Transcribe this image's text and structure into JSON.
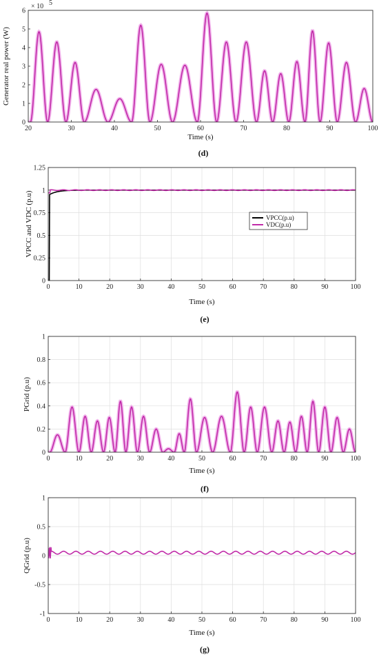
{
  "colors": {
    "black": "#000000",
    "magenta": "#c02aa8",
    "grid": "#dedede",
    "halo": "#f2b5ec"
  },
  "chart_data": [
    {
      "id": "d",
      "type": "line",
      "panel_label": "(d)",
      "xlabel": "Time (s)",
      "ylabel": "Generator real power (W)",
      "y_exponent_label": "× 10",
      "y_exponent": "5",
      "xlim": [
        20,
        100
      ],
      "ylim": [
        0,
        6
      ],
      "xticks": [
        20,
        30,
        40,
        50,
        60,
        70,
        80,
        90,
        100
      ],
      "yticks": [
        0,
        1,
        2,
        3,
        4,
        5,
        6
      ],
      "grid": false,
      "series": [
        {
          "color": "magenta",
          "peaks_x": [
            22.5,
            26.5,
            31,
            35,
            42,
            46,
            50.5,
            56.5,
            62,
            65.5,
            71,
            75,
            78.5,
            82.5,
            86,
            89.5,
            94,
            98
          ],
          "peaks_y": [
            4.85,
            4.3,
            3.2,
            1.75,
            1.25,
            5.2,
            3.1,
            3.05,
            5.85,
            4.3,
            4.3,
            2.75,
            2.6,
            3.25,
            4.9,
            4.25,
            3.2,
            1.8
          ]
        }
      ]
    },
    {
      "id": "e",
      "type": "line",
      "panel_label": "(e)",
      "xlabel": "Time (s)",
      "ylabel": "VPCC and VDC (p.u)",
      "xlim": [
        0,
        100
      ],
      "ylim": [
        0,
        1.25
      ],
      "xticks": [
        0,
        10,
        20,
        30,
        40,
        50,
        60,
        70,
        80,
        90,
        100
      ],
      "yticks": [
        0,
        0.25,
        0.5,
        0.75,
        1,
        1.25
      ],
      "ytick_labels": [
        "0",
        "0.25",
        "0.5",
        "0.75",
        "1",
        "1.25"
      ],
      "grid": true,
      "legend_position": "center-right",
      "series": [
        {
          "name": "VPCC(p.u)",
          "color": "black",
          "steady_value": 1.0
        },
        {
          "name": "VDC(p.u)",
          "color": "magenta",
          "steady_value": 1.0
        }
      ]
    },
    {
      "id": "f",
      "type": "line",
      "panel_label": "(f)",
      "xlabel": "Time (s)",
      "ylabel": "PGrid (p.u)",
      "xlim": [
        0,
        100
      ],
      "ylim": [
        0,
        1
      ],
      "xticks": [
        0,
        10,
        20,
        30,
        40,
        50,
        60,
        70,
        80,
        90,
        100
      ],
      "yticks": [
        0,
        0.2,
        0.4,
        0.6,
        0.8,
        1
      ],
      "ytick_labels": [
        "0",
        "0.2",
        "0.4",
        "0.6",
        "0.8",
        "1"
      ],
      "grid": true,
      "series": [
        {
          "color": "magenta",
          "peaks_x": [
            3,
            8,
            12,
            16,
            20,
            23.5,
            27,
            31,
            35,
            39.5,
            42.5,
            46,
            50.5,
            56.5,
            62,
            65.5,
            70.5,
            75,
            78.5,
            82.5,
            86,
            90,
            94,
            98
          ],
          "peaks_y": [
            0.15,
            0.39,
            0.31,
            0.27,
            0.3,
            0.44,
            0.39,
            0.31,
            0.2,
            0.03,
            0.16,
            0.46,
            0.3,
            0.31,
            0.52,
            0.39,
            0.39,
            0.27,
            0.26,
            0.31,
            0.44,
            0.39,
            0.3,
            0.2
          ]
        }
      ]
    },
    {
      "id": "g",
      "type": "line",
      "panel_label": "(g)",
      "xlabel": "Time (s)",
      "ylabel": "QGrid (p.u)",
      "xlim": [
        0,
        100
      ],
      "ylim": [
        -1,
        1
      ],
      "xticks": [
        0,
        10,
        20,
        30,
        40,
        50,
        60,
        70,
        80,
        90,
        100
      ],
      "yticks": [
        -1,
        -0.5,
        0,
        0.5,
        1
      ],
      "ytick_labels": [
        "-1",
        "-0.5",
        "0",
        "0.5",
        "1"
      ],
      "grid": true,
      "series": [
        {
          "color": "magenta",
          "mean": 0.05,
          "amplitude": 0.025,
          "period": 4.0
        }
      ]
    }
  ]
}
